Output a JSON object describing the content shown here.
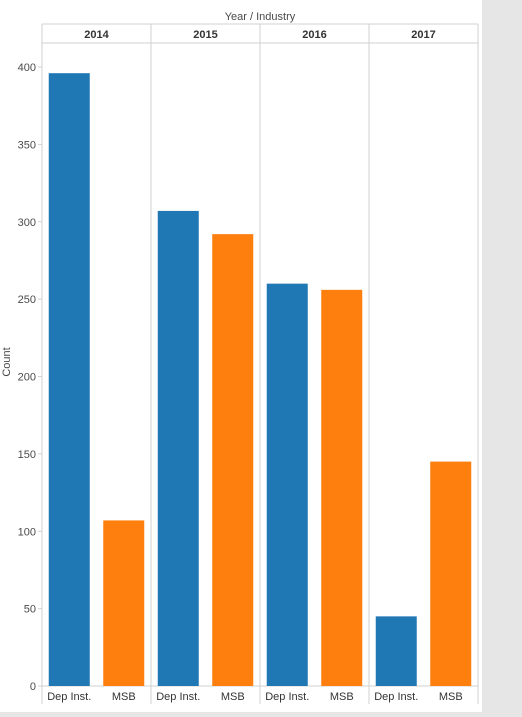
{
  "chart_data": {
    "type": "bar",
    "header_title": "Year  /  Industry",
    "ylabel": "Count",
    "ylim": [
      0,
      420
    ],
    "yticks": [
      0,
      50,
      100,
      150,
      200,
      250,
      300,
      350,
      400
    ],
    "grid": false,
    "groups": [
      {
        "year": "2014",
        "bars": [
          {
            "industry": "Dep Inst.",
            "value": 396
          },
          {
            "industry": "MSB",
            "value": 107
          }
        ]
      },
      {
        "year": "2015",
        "bars": [
          {
            "industry": "Dep Inst.",
            "value": 307
          },
          {
            "industry": "MSB",
            "value": 292
          }
        ]
      },
      {
        "year": "2016",
        "bars": [
          {
            "industry": "Dep Inst.",
            "value": 260
          },
          {
            "industry": "MSB",
            "value": 256
          }
        ]
      },
      {
        "year": "2017",
        "bars": [
          {
            "industry": "Dep Inst.",
            "value": 45
          },
          {
            "industry": "MSB",
            "value": 145
          }
        ]
      }
    ],
    "colors": {
      "Dep Inst.": "#1f77b4",
      "MSB": "#ff7f0e"
    }
  }
}
